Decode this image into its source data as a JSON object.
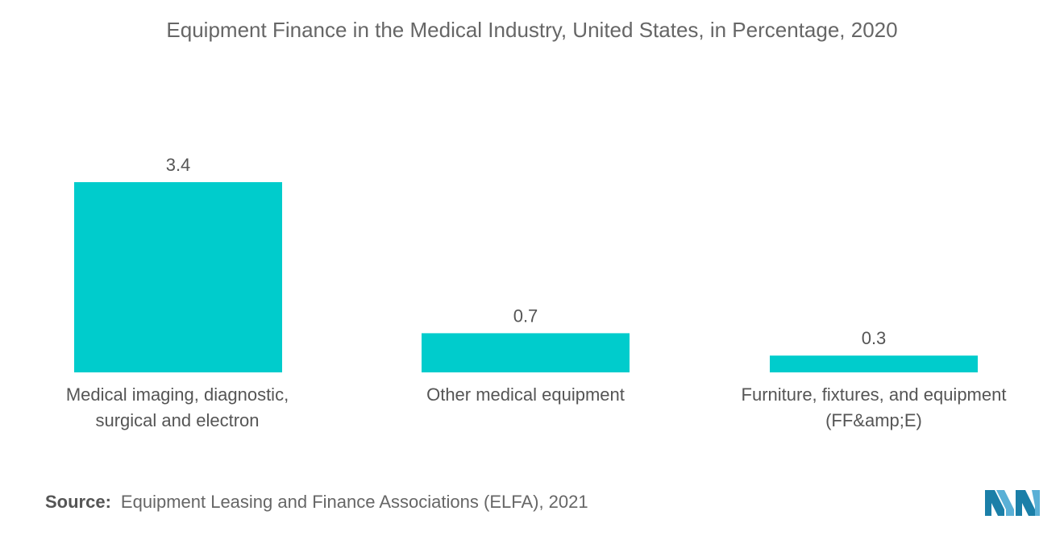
{
  "chart_data": {
    "type": "bar",
    "title": "Equipment Finance in the Medical Industry, United States, in Percentage, 2020",
    "categories": [
      "Medical imaging, diagnostic, surgical and electron",
      "Other medical equipment",
      "Furniture, fixtures, and equipment (FF&amp;E)"
    ],
    "values": [
      3.4,
      0.7,
      0.3
    ],
    "value_labels": [
      "3.4",
      "0.7",
      "0.3"
    ],
    "xlabel": "",
    "ylabel": "",
    "ylim": [
      0,
      3.4
    ],
    "grid": false,
    "legend": "none",
    "bar_color": "#00cccc"
  },
  "source": {
    "label": "Source:",
    "text": "Equipment Leasing and Finance Associations (ELFA), 2021"
  },
  "logo": {
    "icon": "mordor-intelligence-logo-icon",
    "color_light": "#5ab0d6",
    "color_dark": "#1b7fa8"
  }
}
